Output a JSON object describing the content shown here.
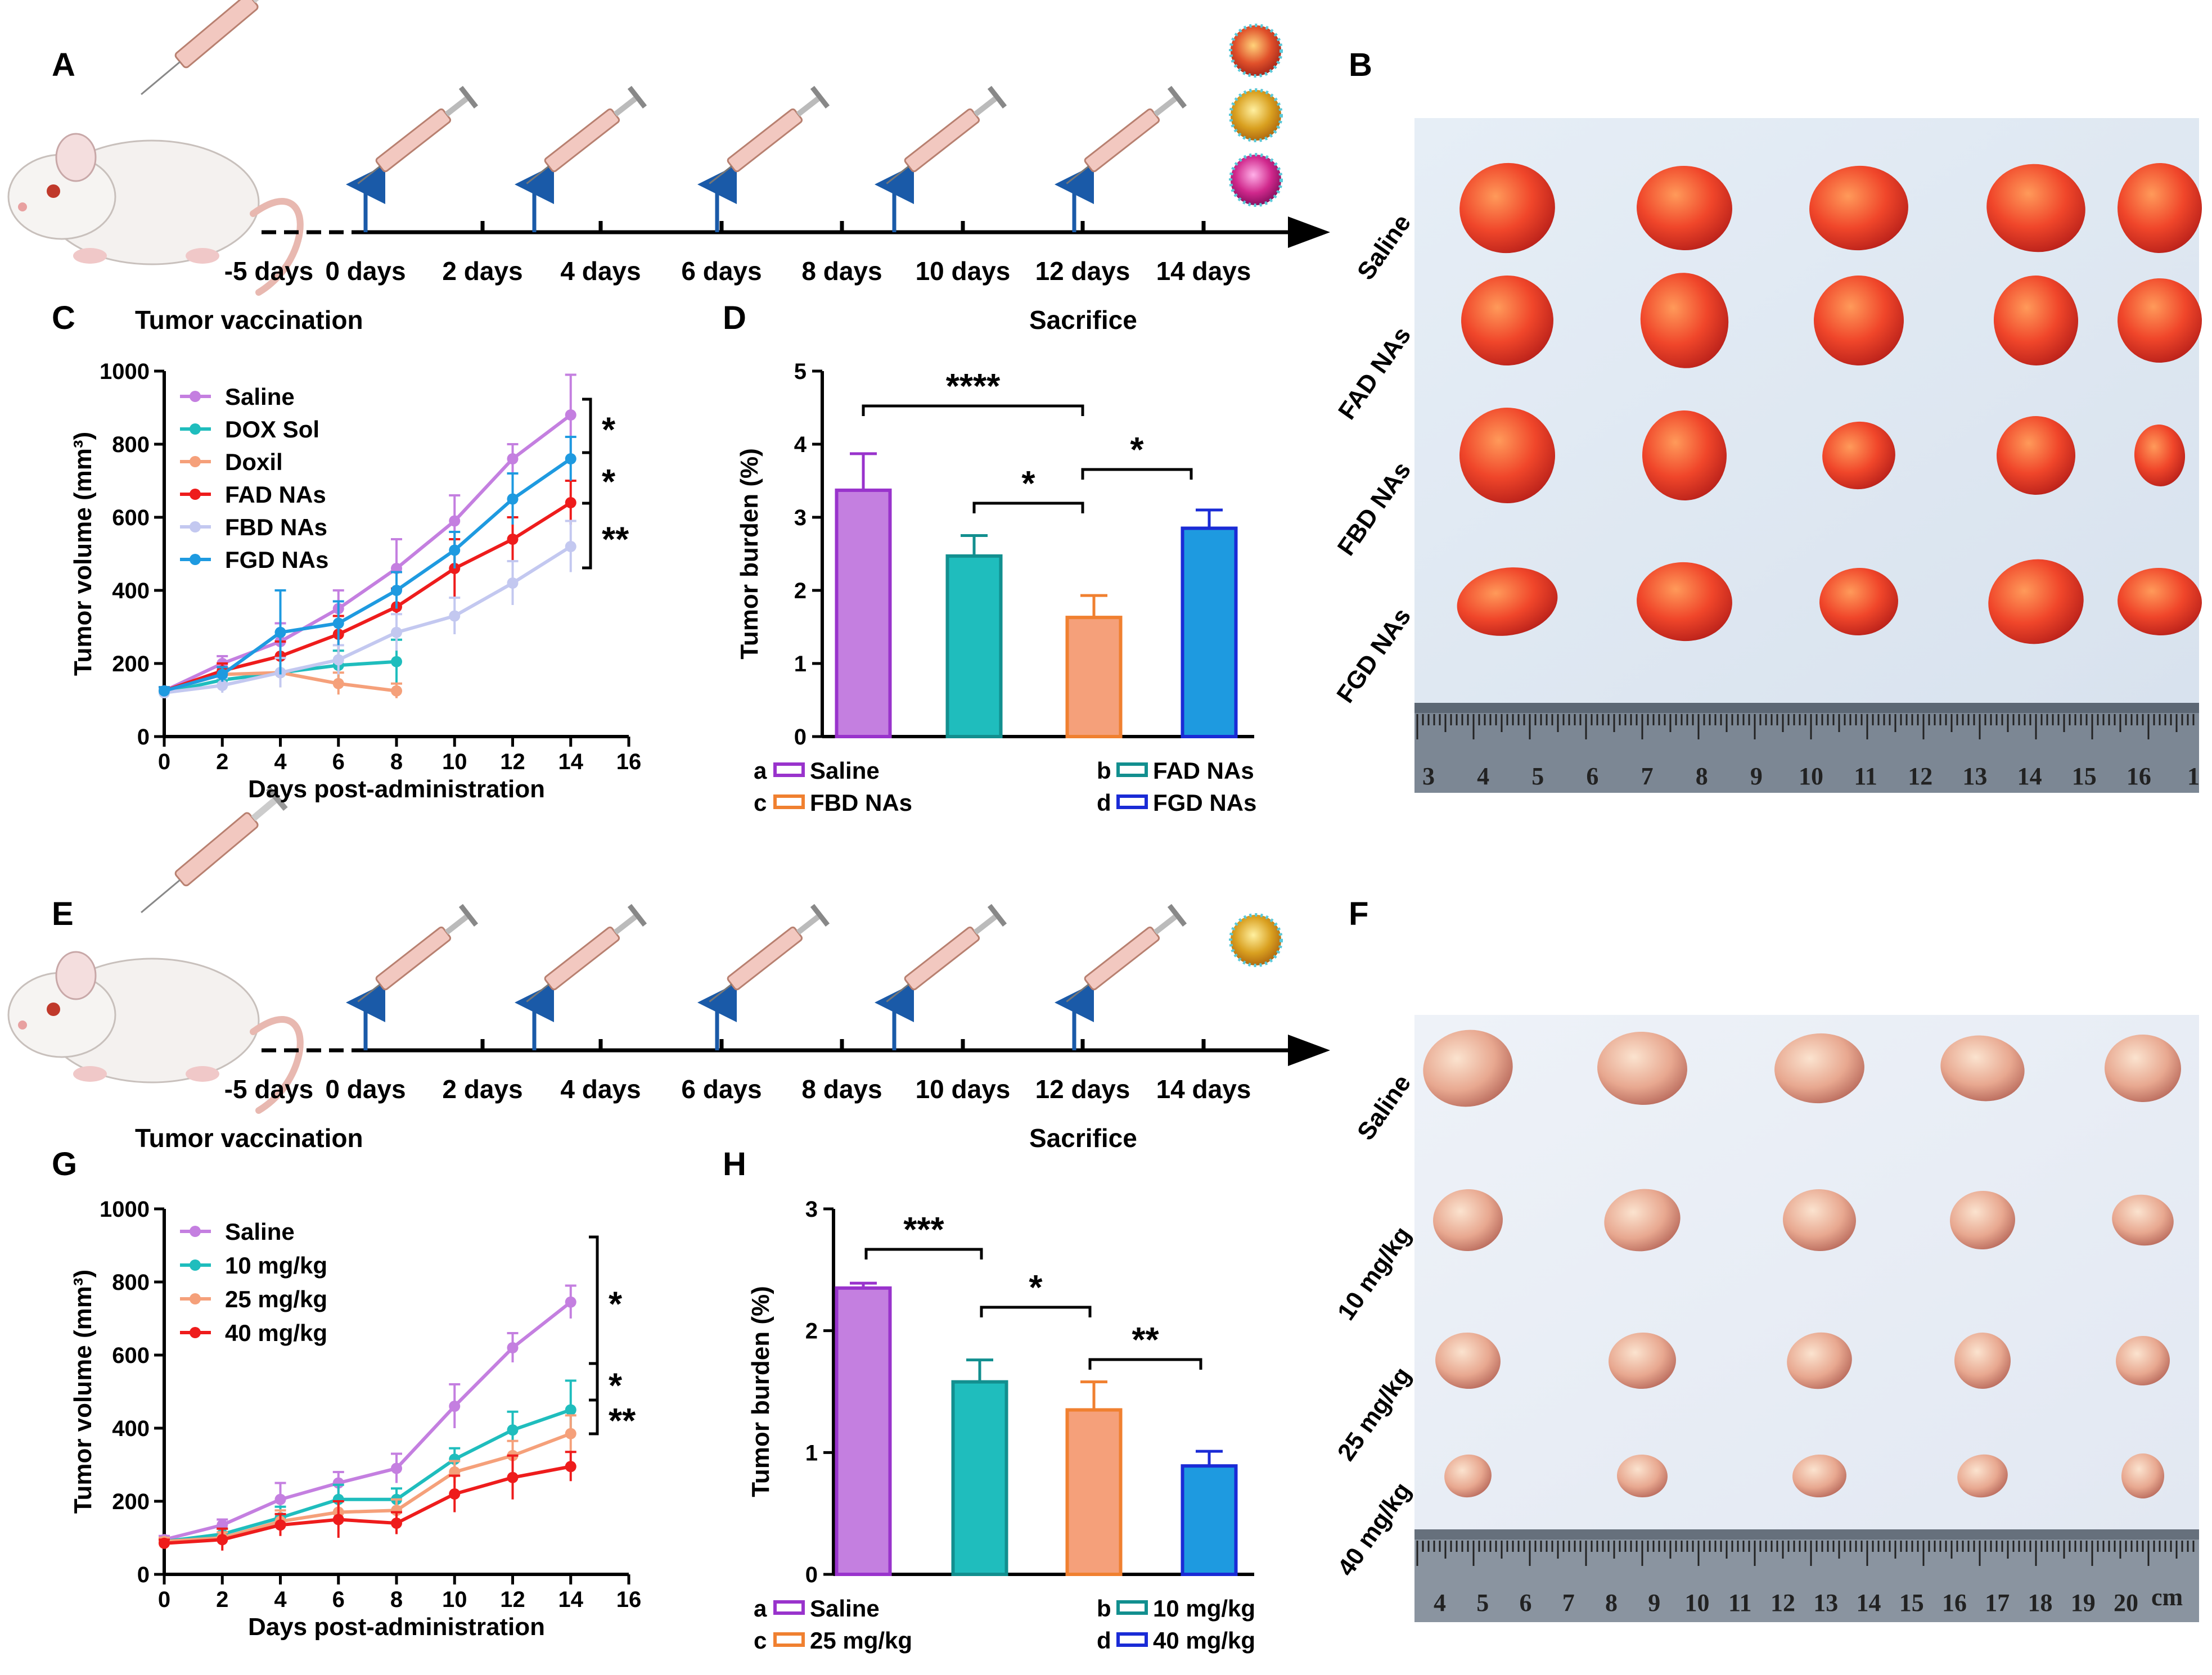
{
  "panels": {
    "A": "A",
    "B": "B",
    "C": "C",
    "D": "D",
    "E": "E",
    "F": "F",
    "G": "G",
    "H": "H"
  },
  "timeline": {
    "labels": [
      "-5 days",
      "0 days",
      "2 days",
      "4 days",
      "6 days",
      "8 days",
      "10 days",
      "12 days",
      "14 days"
    ],
    "left_caption": "Tumor vaccination",
    "right_caption": "Sacrifice"
  },
  "photo_B": {
    "rows": [
      "Saline",
      "FAD NAs",
      "FBD NAs",
      "FGD NAs"
    ],
    "ruler": [
      "3",
      "4",
      "5",
      "6",
      "7",
      "8",
      "9",
      "10",
      "11",
      "12",
      "13",
      "14",
      "15",
      "16",
      "1"
    ]
  },
  "photo_F": {
    "rows": [
      "Saline",
      "10 mg/kg",
      "25 mg/kg",
      "40 mg/kg"
    ],
    "ruler": [
      "4",
      "5",
      "6",
      "7",
      "8",
      "9",
      "10",
      "11",
      "12",
      "13",
      "14",
      "15",
      "16",
      "17",
      "18",
      "19",
      "20"
    ],
    "unit": "cm"
  },
  "chart_data": [
    {
      "id": "C",
      "type": "line",
      "xlabel": "Days post-administration",
      "ylabel": "Tumor volume (mm³)",
      "xlim": [
        0,
        16
      ],
      "ylim": [
        0,
        1000
      ],
      "xticks": [
        "0",
        "2",
        "4",
        "6",
        "8",
        "10",
        "12",
        "14",
        "16"
      ],
      "yticks": [
        "0",
        "200",
        "400",
        "600",
        "800",
        "1000"
      ],
      "series": [
        {
          "name": "Saline",
          "color": "#c47fe0",
          "x": [
            0,
            2,
            4,
            6,
            8,
            10,
            12,
            14
          ],
          "values": [
            125,
            200,
            260,
            350,
            460,
            590,
            760,
            880
          ],
          "err": [
            10,
            20,
            50,
            50,
            80,
            70,
            40,
            110
          ]
        },
        {
          "name": "DOX Sol",
          "color": "#1fbdbd",
          "x": [
            0,
            2,
            4,
            6,
            8
          ],
          "values": [
            120,
            155,
            175,
            195,
            205
          ],
          "err": [
            10,
            20,
            40,
            40,
            60
          ]
        },
        {
          "name": "Doxil",
          "color": "#f5a07a",
          "x": [
            0,
            2,
            4,
            6,
            8
          ],
          "values": [
            125,
            170,
            175,
            145,
            125
          ],
          "err": [
            10,
            20,
            40,
            30,
            20
          ]
        },
        {
          "name": "FAD NAs",
          "color": "#ee1c1c",
          "x": [
            0,
            2,
            4,
            6,
            8,
            10,
            12,
            14
          ],
          "values": [
            125,
            180,
            220,
            280,
            355,
            460,
            540,
            640
          ],
          "err": [
            10,
            20,
            40,
            50,
            50,
            80,
            60,
            60
          ]
        },
        {
          "name": "FBD NAs",
          "color": "#c3c8f0",
          "x": [
            0,
            2,
            4,
            6,
            8,
            10,
            12,
            14
          ],
          "values": [
            120,
            140,
            175,
            210,
            285,
            330,
            420,
            520
          ],
          "err": [
            10,
            20,
            40,
            40,
            50,
            50,
            60,
            70
          ]
        },
        {
          "name": "FGD NAs",
          "color": "#1e9ae0",
          "x": [
            0,
            2,
            4,
            6,
            8,
            10,
            12,
            14
          ],
          "values": [
            125,
            170,
            285,
            310,
            400,
            510,
            650,
            760
          ],
          "err": [
            10,
            20,
            115,
            60,
            50,
            50,
            70,
            60
          ]
        }
      ],
      "significance": [
        "*",
        "*",
        "**"
      ]
    },
    {
      "id": "D",
      "type": "bar",
      "ylabel": "Tumor burden (%)",
      "ylim": [
        0,
        5
      ],
      "yticks": [
        "0",
        "1",
        "2",
        "3",
        "4",
        "5"
      ],
      "categories": [
        "Saline",
        "FAD NAs",
        "FBD NAs",
        "FGD NAs"
      ],
      "letters": [
        "a",
        "b",
        "c",
        "d"
      ],
      "values": [
        3.37,
        2.47,
        1.63,
        2.85
      ],
      "err": [
        0.5,
        0.28,
        0.3,
        0.25
      ],
      "colors": [
        "#c47fe0",
        "#1fbdbd",
        "#f5a07a",
        "#1e9ae0"
      ],
      "edge_colors": [
        "#9933cc",
        "#128f8f",
        "#f08030",
        "#1a2bd6"
      ],
      "significance": [
        "****",
        "*",
        "*"
      ]
    },
    {
      "id": "G",
      "type": "line",
      "xlabel": "Days post-administration",
      "ylabel": "Tumor volume (mm³)",
      "xlim": [
        0,
        16
      ],
      "ylim": [
        0,
        1000
      ],
      "xticks": [
        "0",
        "2",
        "4",
        "6",
        "8",
        "10",
        "12",
        "14",
        "16"
      ],
      "yticks": [
        "0",
        "200",
        "400",
        "600",
        "800",
        "1000"
      ],
      "series": [
        {
          "name": "Saline",
          "color": "#c47fe0",
          "x": [
            0,
            2,
            4,
            6,
            8,
            10,
            12,
            14
          ],
          "values": [
            95,
            135,
            205,
            250,
            290,
            460,
            620,
            745
          ],
          "err": [
            10,
            15,
            45,
            30,
            40,
            60,
            40,
            45
          ]
        },
        {
          "name": "10 mg/kg",
          "color": "#1fbdbd",
          "x": [
            0,
            2,
            4,
            6,
            8,
            10,
            12,
            14
          ],
          "values": [
            90,
            110,
            155,
            205,
            205,
            315,
            395,
            450
          ],
          "err": [
            10,
            15,
            30,
            40,
            30,
            30,
            50,
            80
          ]
        },
        {
          "name": "25 mg/kg",
          "color": "#f5a07a",
          "x": [
            0,
            2,
            4,
            6,
            8,
            10,
            12,
            14
          ],
          "values": [
            90,
            100,
            145,
            170,
            175,
            280,
            325,
            385
          ],
          "err": [
            10,
            15,
            30,
            30,
            30,
            30,
            40,
            50
          ]
        },
        {
          "name": "40 mg/kg",
          "color": "#ee1c1c",
          "x": [
            0,
            2,
            4,
            6,
            8,
            10,
            12,
            14
          ],
          "values": [
            85,
            95,
            135,
            150,
            140,
            220,
            265,
            295
          ],
          "err": [
            10,
            30,
            30,
            50,
            30,
            50,
            60,
            40
          ]
        }
      ],
      "significance": [
        "*",
        "*",
        "**"
      ]
    },
    {
      "id": "H",
      "type": "bar",
      "ylabel": "Tumor burden (%)",
      "ylim": [
        0,
        3
      ],
      "yticks": [
        "0",
        "1",
        "2",
        "3"
      ],
      "categories": [
        "Saline",
        "10 mg/kg",
        "25 mg/kg",
        "40 mg/kg"
      ],
      "letters": [
        "a",
        "b",
        "c",
        "d"
      ],
      "values": [
        2.35,
        1.58,
        1.35,
        0.89
      ],
      "err": [
        0.04,
        0.18,
        0.23,
        0.12
      ],
      "colors": [
        "#c47fe0",
        "#1fbdbd",
        "#f5a07a",
        "#1e9ae0"
      ],
      "edge_colors": [
        "#9933cc",
        "#128f8f",
        "#f08030",
        "#1a2bd6"
      ],
      "significance": [
        "***",
        "*",
        "**"
      ]
    }
  ]
}
